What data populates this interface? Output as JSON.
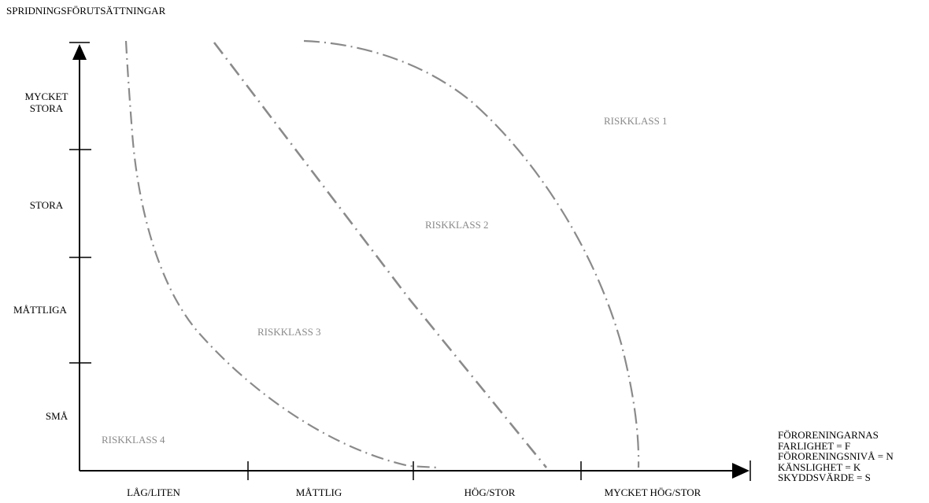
{
  "y_axis": {
    "title": "SPRIDNINGSFÖRUTSÄTTNINGAR",
    "categories": [
      [
        "MYCKET",
        "STORA"
      ],
      [
        "STORA"
      ],
      [
        "MÅTTLIGA"
      ],
      [
        "SMÅ"
      ]
    ]
  },
  "x_axis": {
    "categories": [
      "LÅG/LITEN",
      "MÅTTLIG",
      "HÖG/STOR",
      "MYCKET HÖG/STOR"
    ],
    "title_lines": [
      "FÖRORENINGARNAS",
      "FARLIGHET = F",
      "FÖRORENINGSNIVÅ = N",
      "KÄNSLIGHET = K",
      "SKYDDSVÄRDE = S"
    ]
  },
  "zones": [
    {
      "label": "RISKKLASS 1"
    },
    {
      "label": "RISKKLASS 2"
    },
    {
      "label": "RISKKLASS 3"
    },
    {
      "label": "RISKKLASS 4"
    }
  ],
  "colors": {
    "axis": "#000000",
    "boundary": "#8a8a8a",
    "zone_label": "#8a8a8a"
  }
}
